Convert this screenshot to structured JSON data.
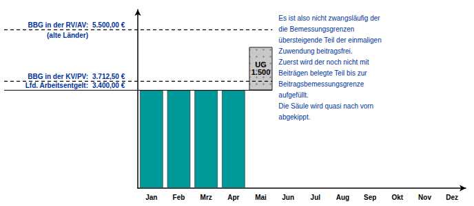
{
  "chart_data": {
    "type": "bar",
    "stacked": true,
    "categories": [
      "Jan",
      "Feb",
      "Mrz",
      "Apr",
      "Mai",
      "Jun",
      "Jul",
      "Aug",
      "Sep",
      "Okt",
      "Nov",
      "Dez"
    ],
    "series": [
      {
        "color": "#009999",
        "values": [
          3400,
          3400,
          3400,
          3400,
          null,
          null,
          null,
          null,
          null,
          null,
          null,
          null
        ]
      },
      {
        "name": "UG",
        "color": "#c8c8c8",
        "data_labels": true,
        "values": [
          null,
          null,
          null,
          null,
          1500,
          null,
          null,
          null,
          null,
          null,
          null,
          null
        ],
        "bottom": [
          null,
          null,
          null,
          null,
          3400,
          null,
          null,
          null,
          null,
          null,
          null,
          null
        ],
        "value_labels": [
          null,
          null,
          null,
          null,
          "1.500",
          null,
          null,
          null,
          null,
          null,
          null,
          null
        ]
      }
    ],
    "ylim": [
      0,
      6200
    ],
    "tick_labels": "x",
    "grid": false,
    "reference_lines": [
      {
        "value": 5500,
        "label": [
          "BBG in der RV/AV:",
          "(alte Länder)"
        ],
        "value_label": "5.500,00 €",
        "line_style": "dashed",
        "color": "#003399"
      },
      {
        "value": 3712.5,
        "label": [
          "BBG in der KV/PV:"
        ],
        "value_label": "3.712,50 €",
        "line_style": "dashed",
        "color": "#003399"
      },
      {
        "value": 3400,
        "label": [
          "Lfd. Arbeitsentgelt:"
        ],
        "value_label": "3.400,00 €",
        "line_style": "solid",
        "color": "#003399"
      }
    ],
    "annotation": {
      "text": [
        "Es ist also nicht zwangsläufig der",
        "die Bemessungsgrenzen",
        "übersteigende Teil der einmaligen",
        "Zuwendung beitragsfrei.",
        "Zuerst wird der noch nicht mit",
        "Beiträgen belegte Teil bis zur",
        "Beitragsbemessungsgrenze",
        "aufgefüllt.",
        "Die Säule wird quasi nach vorn",
        "abgekippt."
      ],
      "color": "#003399"
    }
  }
}
